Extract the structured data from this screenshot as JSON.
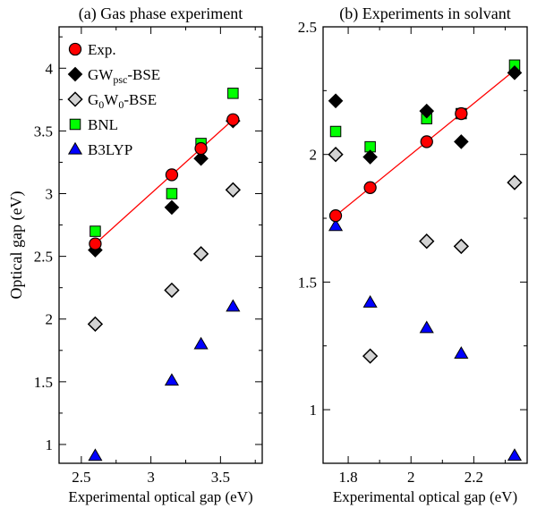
{
  "chart_data": [
    {
      "type": "scatter",
      "title": "(a) Gas phase experiment",
      "xlabel": "Experimental optical gap (eV)",
      "ylabel": "Optical gap (eV)",
      "xlim": [
        2.34,
        3.8
      ],
      "ylim": [
        0.85,
        4.33
      ],
      "xticks": [
        2.5,
        3,
        3.5
      ],
      "xtick_labels": [
        "2.5",
        "3",
        "3.5"
      ],
      "yticks": [
        1,
        1.5,
        2,
        2.5,
        3,
        3.5,
        4
      ],
      "ytick_labels": [
        "1",
        "1.5",
        "2",
        "2.5",
        "3",
        "3.5",
        "4"
      ],
      "legend_position": "top-left",
      "reference_line": {
        "x": [
          2.6,
          3.59
        ],
        "y": [
          2.6,
          3.59
        ],
        "color": "#ff0000"
      },
      "series": [
        {
          "name": "Exp.",
          "marker": "circle",
          "color": "#ff0000",
          "x": [
            2.6,
            3.15,
            3.36,
            3.59
          ],
          "y": [
            2.6,
            3.15,
            3.36,
            3.59
          ]
        },
        {
          "name": "GWpsc-BSE",
          "marker": "diamond",
          "color": "#000000",
          "x": [
            2.6,
            3.15,
            3.36,
            3.59
          ],
          "y": [
            2.55,
            2.89,
            3.28,
            3.58
          ]
        },
        {
          "name": "G0W0-BSE",
          "marker": "diamond-open",
          "color": "#d3d3d3",
          "x": [
            2.6,
            3.15,
            3.36,
            3.59
          ],
          "y": [
            1.96,
            2.23,
            2.52,
            3.03
          ]
        },
        {
          "name": "BNL",
          "marker": "square",
          "color": "#00ff00",
          "x": [
            2.6,
            3.15,
            3.36,
            3.59
          ],
          "y": [
            2.7,
            3.0,
            3.4,
            3.8
          ]
        },
        {
          "name": "B3LYP",
          "marker": "triangle",
          "color": "#0000ff",
          "x": [
            2.6,
            3.15,
            3.36,
            3.59
          ],
          "y": [
            0.91,
            1.51,
            1.8,
            2.1
          ]
        }
      ]
    },
    {
      "type": "scatter",
      "title": "(b) Experiments in solvant",
      "xlabel": "Experimental optical gap (eV)",
      "ylabel": "",
      "xlim": [
        1.72,
        2.37
      ],
      "ylim": [
        0.79,
        2.5
      ],
      "xticks": [
        1.8,
        2,
        2.2
      ],
      "xtick_labels": [
        "1.8",
        "2",
        "2.2"
      ],
      "yticks": [
        1,
        1.5,
        2,
        2.5
      ],
      "ytick_labels": [
        "1",
        "1.5",
        "2",
        "2.5"
      ],
      "reference_line": {
        "x": [
          1.76,
          2.33
        ],
        "y": [
          1.76,
          2.33
        ],
        "color": "#ff0000"
      },
      "series": [
        {
          "name": "Exp.",
          "marker": "circle",
          "color": "#ff0000",
          "x": [
            1.76,
            1.87,
            2.05,
            2.16
          ],
          "y": [
            1.76,
            1.87,
            2.05,
            2.16
          ]
        },
        {
          "name": "GWpsc-BSE",
          "marker": "diamond",
          "color": "#000000",
          "x": [
            1.76,
            1.87,
            2.05,
            2.16,
            2.33
          ],
          "y": [
            2.21,
            1.99,
            2.17,
            2.05,
            2.32
          ]
        },
        {
          "name": "G0W0-BSE",
          "marker": "diamond-open",
          "color": "#d3d3d3",
          "x": [
            1.76,
            1.87,
            2.05,
            2.16,
            2.33
          ],
          "y": [
            2.0,
            1.21,
            1.66,
            1.64,
            1.89
          ]
        },
        {
          "name": "BNL",
          "marker": "square",
          "color": "#00ff00",
          "x": [
            1.76,
            1.87,
            2.05,
            2.16,
            2.33
          ],
          "y": [
            2.09,
            2.03,
            2.14,
            2.16,
            2.35
          ]
        },
        {
          "name": "B3LYP",
          "marker": "triangle",
          "color": "#0000ff",
          "x": [
            1.76,
            1.87,
            2.05,
            2.16,
            2.33
          ],
          "y": [
            1.72,
            1.42,
            1.32,
            1.22,
            0.82
          ]
        }
      ]
    }
  ],
  "legend": {
    "items": [
      {
        "marker": "circle",
        "color": "#ff0000",
        "text": "Exp.",
        "parts": []
      },
      {
        "marker": "diamond",
        "color": "#000000",
        "text": "",
        "parts": [
          {
            "t": "GW",
            "sub": false
          },
          {
            "t": "psc",
            "sub": true
          },
          {
            "t": "-BSE",
            "sub": false
          }
        ]
      },
      {
        "marker": "diamond-open",
        "color": "#d3d3d3",
        "text": "",
        "parts": [
          {
            "t": "G",
            "sub": false
          },
          {
            "t": "0",
            "sub": true
          },
          {
            "t": "W",
            "sub": false
          },
          {
            "t": "0",
            "sub": true
          },
          {
            "t": "-BSE",
            "sub": false
          }
        ]
      },
      {
        "marker": "square",
        "color": "#00ff00",
        "text": "BNL",
        "parts": []
      },
      {
        "marker": "triangle",
        "color": "#0000ff",
        "text": "B3LYP",
        "parts": []
      }
    ]
  }
}
